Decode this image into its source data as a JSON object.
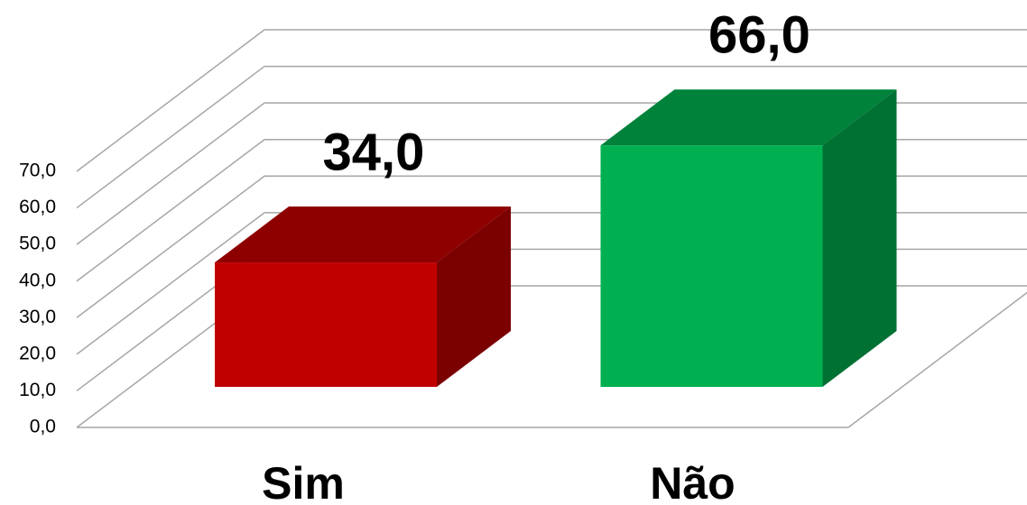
{
  "chart_data": {
    "type": "bar3d",
    "categories": [
      "Sim",
      "Não"
    ],
    "values": [
      34,
      66
    ],
    "value_labels": [
      "34,0",
      "66,0"
    ],
    "colors": [
      "#c00000",
      "#00b050"
    ],
    "ylim": [
      0,
      70
    ],
    "yticks": [
      {
        "value": 0,
        "label": "0,0"
      },
      {
        "value": 10,
        "label": "10,0"
      },
      {
        "value": 20,
        "label": "20,0"
      },
      {
        "value": 30,
        "label": "30,0"
      },
      {
        "value": 40,
        "label": "40,0"
      },
      {
        "value": 50,
        "label": "50,0"
      },
      {
        "value": 60,
        "label": "60,0"
      },
      {
        "value": 70,
        "label": "70,0"
      }
    ],
    "grid": true
  }
}
